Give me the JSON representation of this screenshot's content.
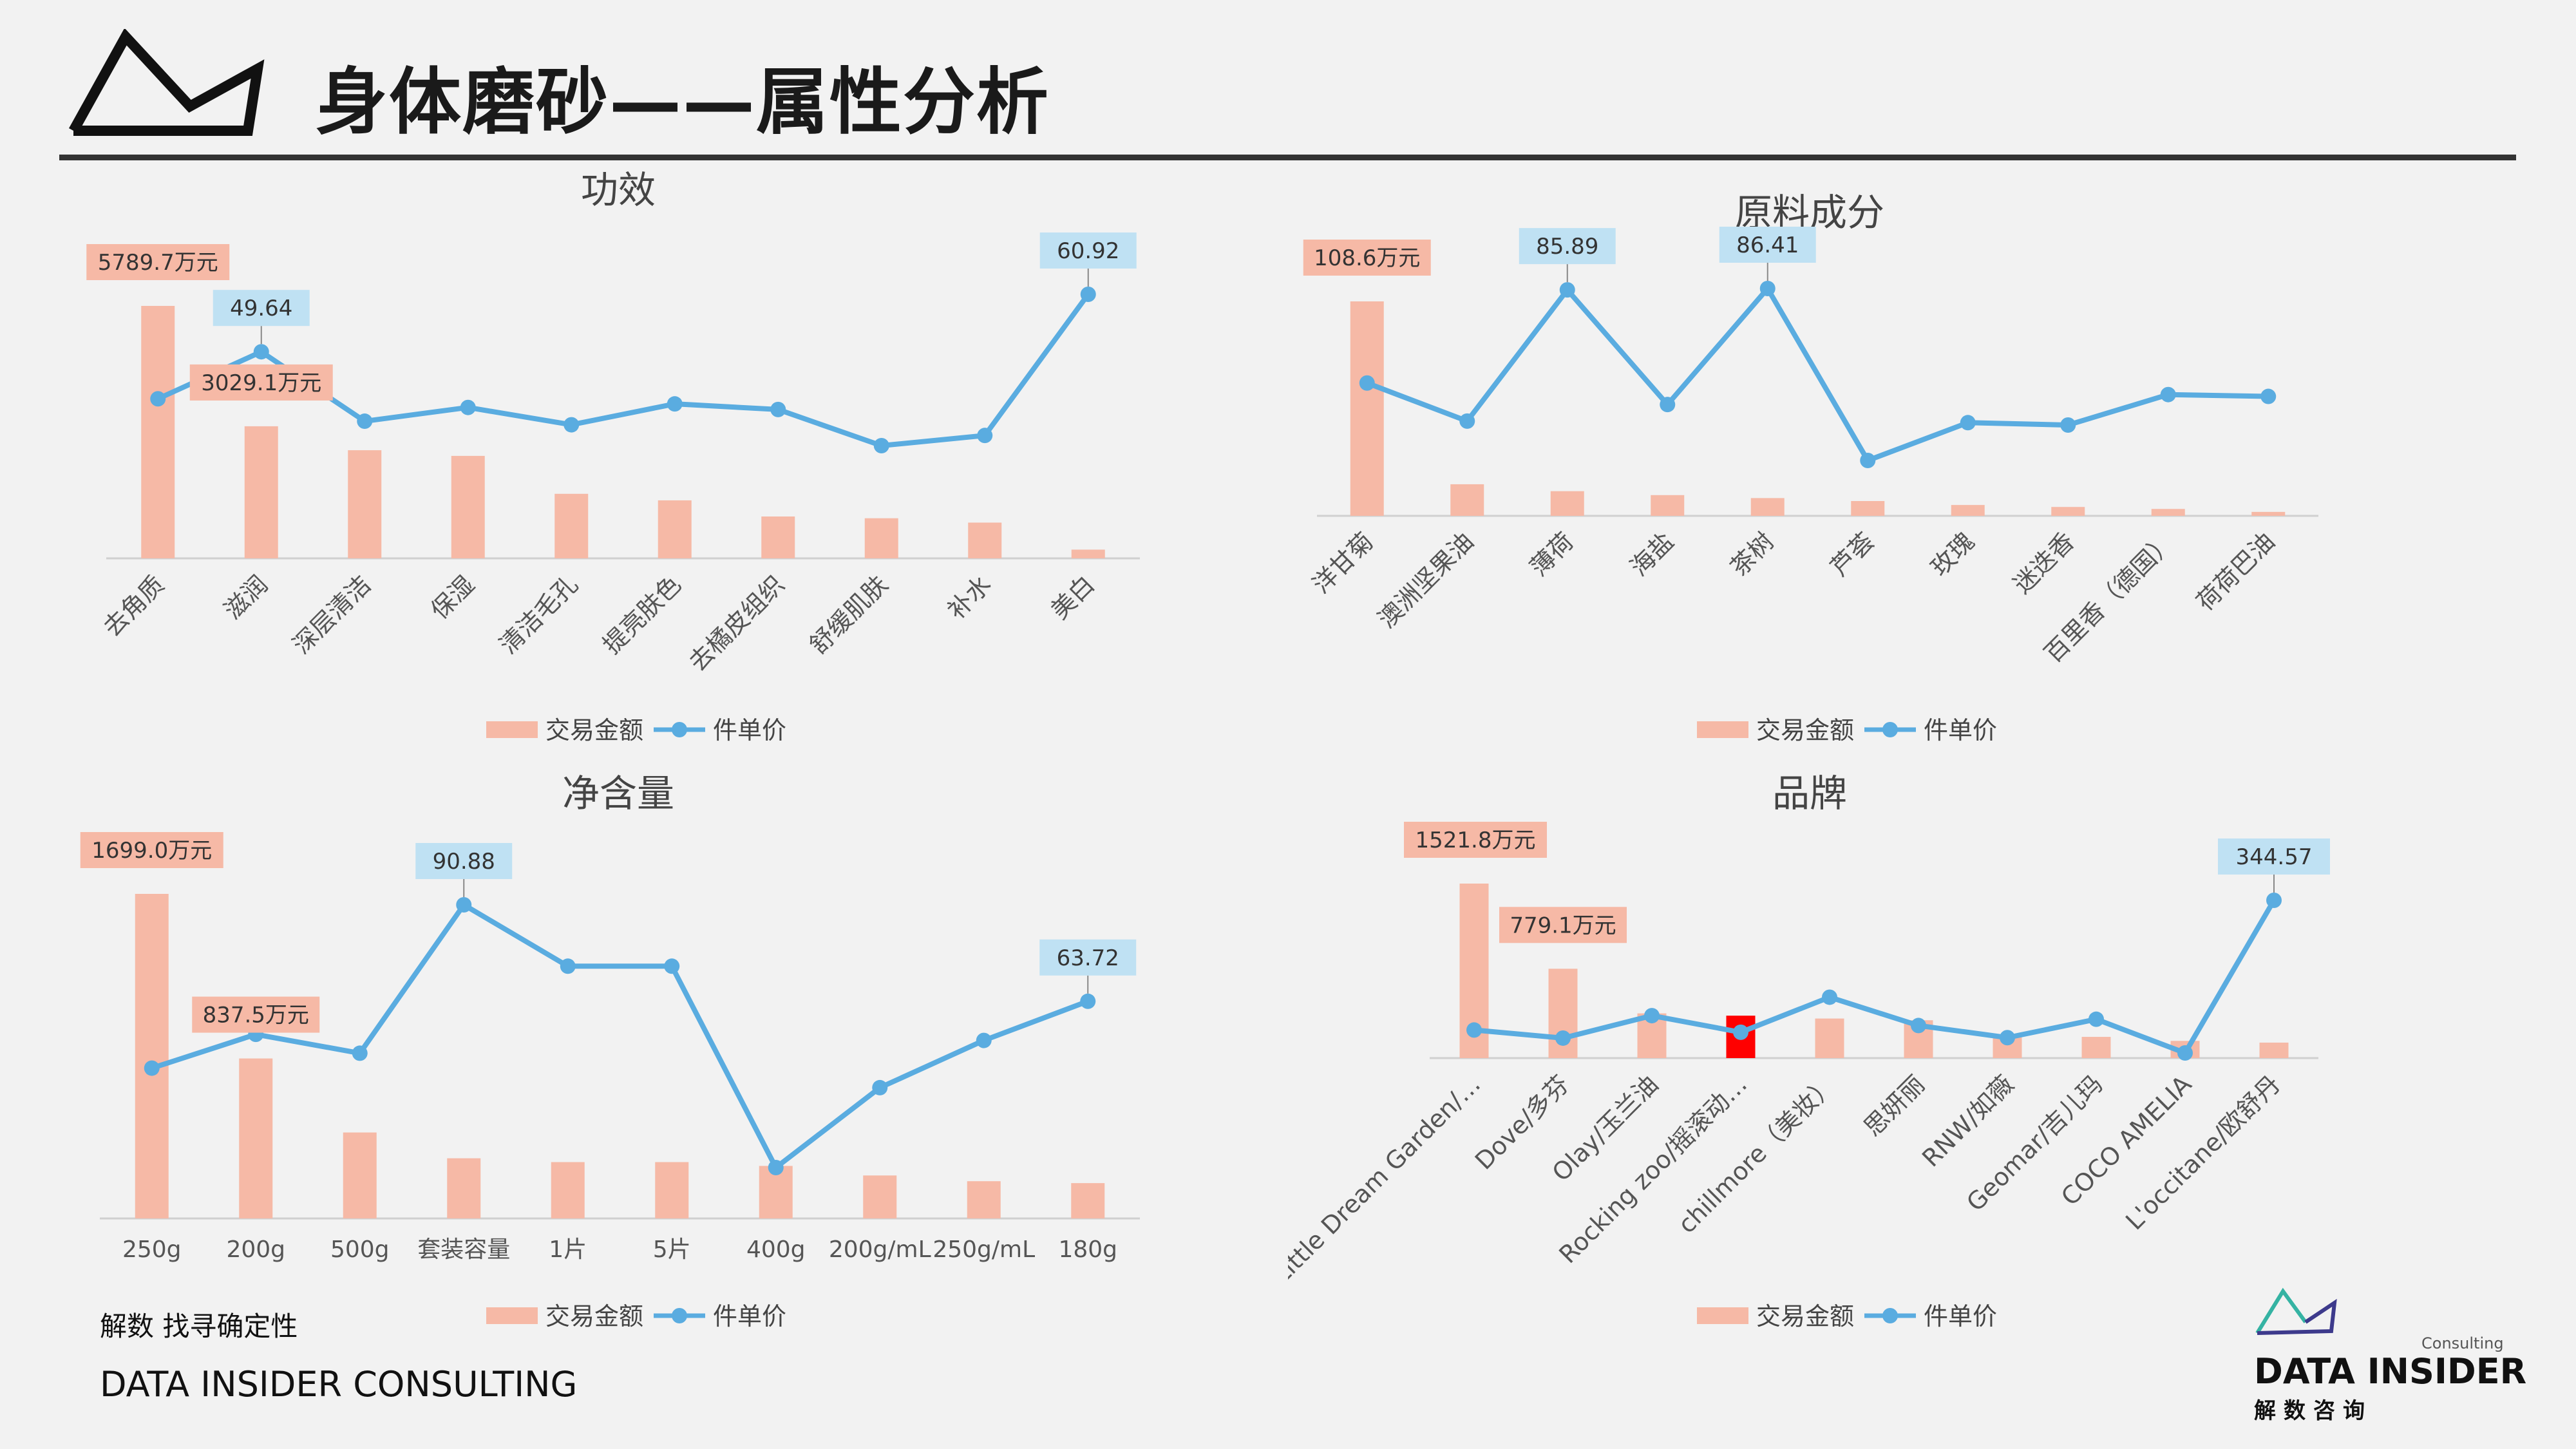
{
  "page": {
    "title": "身体磨砂——属性分析"
  },
  "footer": {
    "tagline_cn": "解数 找寻确定性",
    "tagline_en": "DATA INSIDER CONSULTING"
  },
  "brand": {
    "consulting": "Consulting",
    "name": "DATA INSIDER",
    "name_cn": "解数咨询"
  },
  "colors": {
    "bar": "#f6b9a6",
    "bar_highlight": "#ff0000",
    "line": "#5aace0",
    "bar_label_bg": "#f6b9a6",
    "line_label_bg": "#bfe1f3"
  },
  "chart_data": [
    {
      "id": "efficacy",
      "type": "bar+line",
      "title": "功效",
      "categories": [
        "去角质",
        "滋润",
        "深层清洁",
        "保湿",
        "清洁毛孔",
        "提亮肤色",
        "去橘皮组织",
        "舒缓肌肤",
        "补水",
        "美白"
      ],
      "series": [
        {
          "name": "交易金额",
          "type": "bar",
          "unit": "万元",
          "values": [
            5789.7,
            3029.1,
            2480,
            2350,
            1480,
            1330,
            960,
            920,
            820,
            200
          ]
        },
        {
          "name": "件单价",
          "type": "line",
          "values": [
            40.4,
            49.64,
            36.0,
            38.7,
            35.3,
            39.4,
            38.3,
            31.2,
            33.2,
            60.92
          ]
        }
      ],
      "data_labels": [
        {
          "series": "交易金额",
          "index": 0,
          "text": "5789.7万元"
        },
        {
          "series": "交易金额",
          "index": 1,
          "text": "3029.1万元"
        },
        {
          "series": "件单价",
          "index": 1,
          "text": "49.64"
        },
        {
          "series": "件单价",
          "index": 9,
          "text": "60.92"
        }
      ],
      "legend": [
        "交易金额",
        "件单价"
      ],
      "tick_rotation": -45
    },
    {
      "id": "ingredients",
      "type": "bar+line",
      "title": "原料成分",
      "categories": [
        "洋甘菊",
        "澳洲坚果油",
        "薄荷",
        "海盐",
        "茶树",
        "芦荟",
        "玫瑰",
        "迷迭香",
        "百里香（德国）",
        "荷荷巴油"
      ],
      "series": [
        {
          "name": "交易金额",
          "type": "bar",
          "unit": "万元",
          "values": [
            108.6,
            16.0,
            12.5,
            10.5,
            9.0,
            7.5,
            5.5,
            4.5,
            3.5,
            2.0
          ]
        },
        {
          "name": "件单价",
          "type": "line",
          "values": [
            50.4,
            35.9,
            85.89,
            42.2,
            86.41,
            20.9,
            35.3,
            34.4,
            46.0,
            45.3
          ]
        }
      ],
      "data_labels": [
        {
          "series": "交易金额",
          "index": 0,
          "text": "108.6万元"
        },
        {
          "series": "件单价",
          "index": 2,
          "text": "85.89"
        },
        {
          "series": "件单价",
          "index": 4,
          "text": "86.41"
        }
      ],
      "legend": [
        "交易金额",
        "件单价"
      ],
      "tick_rotation": -45
    },
    {
      "id": "volume",
      "type": "bar+line",
      "title": "净含量",
      "categories": [
        "250g",
        "200g",
        "500g",
        "套装容量",
        "1片",
        "5片",
        "400g",
        "200g/mL",
        "250g/mL",
        "180g"
      ],
      "series": [
        {
          "name": "交易金额",
          "type": "bar",
          "unit": "万元",
          "values": [
            1699.0,
            837.5,
            450,
            315,
            295,
            295,
            275,
            225,
            195,
            185
          ]
        },
        {
          "name": "件单价",
          "type": "line",
          "values": [
            44.9,
            54.4,
            49.1,
            90.88,
            73.6,
            73.6,
            16.9,
            39.4,
            52.7,
            63.72
          ]
        }
      ],
      "data_labels": [
        {
          "series": "交易金额",
          "index": 0,
          "text": "1699.0万元"
        },
        {
          "series": "交易金额",
          "index": 1,
          "text": "837.5万元"
        },
        {
          "series": "件单价",
          "index": 3,
          "text": "90.88"
        },
        {
          "series": "件单价",
          "index": 9,
          "text": "63.72"
        }
      ],
      "legend": [
        "交易金额",
        "件单价"
      ],
      "tick_rotation": 0
    },
    {
      "id": "brand",
      "type": "bar+line",
      "title": "品牌",
      "categories": [
        "Little Dream Garden/…",
        "Dove/多芬",
        "Olay/玉兰油",
        "Rocking zoo/摇滚动…",
        "chillmore（美妆）",
        "思妍丽",
        "RNW/如薇",
        "Geomar/吉儿玛",
        "COCO AMELIA",
        "L'occitane/欧舒丹"
      ],
      "series": [
        {
          "name": "交易金额",
          "type": "bar",
          "unit": "万元",
          "values": [
            1521.8,
            779.1,
            390,
            370,
            345,
            330,
            190,
            185,
            150,
            135
          ]
        },
        {
          "name": "件单价",
          "type": "line",
          "values": [
            56.0,
            38.0,
            88.0,
            51.0,
            129.0,
            66.0,
            39.0,
            80.0,
            5.0,
            344.57
          ]
        }
      ],
      "highlight_bar_index": 3,
      "data_labels": [
        {
          "series": "交易金额",
          "index": 0,
          "text": "1521.8万元"
        },
        {
          "series": "交易金额",
          "index": 1,
          "text": "779.1万元"
        },
        {
          "series": "件单价",
          "index": 9,
          "text": "344.57"
        }
      ],
      "legend": [
        "交易金额",
        "件单价"
      ],
      "tick_rotation": -45
    }
  ]
}
